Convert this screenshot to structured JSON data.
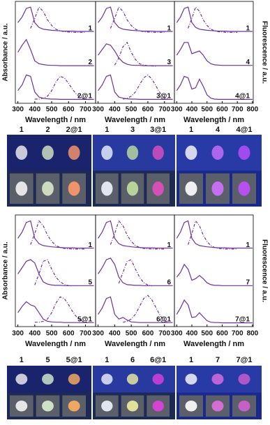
{
  "y_label_left": "Absorbance / a.u.",
  "y_label_right": "Fluorescence / a.u.",
  "photo_labels": [
    [
      "1",
      "2",
      "2@1"
    ],
    [
      "1",
      "3",
      "3@1"
    ],
    [
      "1",
      "4",
      "4@1"
    ],
    [
      "1",
      "5",
      "5@1"
    ],
    [
      "1",
      "6",
      "6@1"
    ],
    [
      "1",
      "7",
      "7@1"
    ]
  ],
  "chart_data": [
    {
      "type": "line",
      "x_label": "Wavelength / nm",
      "color": "#7030a0",
      "xlim": [
        285,
        760
      ],
      "ylim": [
        0,
        1
      ],
      "xticks": [
        300,
        400,
        500,
        600,
        700
      ],
      "x": [
        300,
        325,
        350,
        375,
        400,
        425,
        450,
        475,
        500,
        525,
        550,
        575,
        600,
        625,
        650,
        675,
        700,
        725,
        750
      ],
      "rows": [
        {
          "label": "1",
          "absorbance": [
            0.35,
            0.55,
            0.85,
            0.9,
            0.35,
            0.18,
            0.12,
            0.1,
            0.08,
            0.07,
            0.06,
            0.05,
            0.05,
            0.05,
            0.04,
            0.04,
            0.04,
            0.04,
            0.04
          ],
          "fluorescence": [
            null,
            null,
            null,
            0.15,
            0.5,
            0.9,
            0.75,
            0.45,
            0.25,
            0.12,
            0.06,
            0.03,
            0.02,
            0.01,
            0.01,
            0.01,
            0.01,
            null,
            null
          ]
        },
        {
          "label": "2",
          "absorbance": [
            0.5,
            0.75,
            0.95,
            0.6,
            0.2,
            0.1,
            0.07,
            0.05,
            0.04,
            0.04,
            0.03,
            0.03,
            0.03,
            0.03,
            0.03,
            0.03,
            0.03,
            0.03,
            0.03
          ]
        },
        {
          "label": "2@1",
          "absorbance": [
            0.35,
            0.55,
            0.9,
            0.85,
            0.3,
            0.12,
            0.08,
            0.06,
            0.05,
            0.05,
            0.04,
            0.04,
            0.04,
            0.04,
            0.04,
            0.04,
            0.04,
            0.04,
            0.04
          ],
          "fluorescence": [
            null,
            null,
            null,
            null,
            0.05,
            0.05,
            0.08,
            0.15,
            0.35,
            0.65,
            0.85,
            0.8,
            0.6,
            0.38,
            0.2,
            0.1,
            0.05,
            0.03,
            null
          ]
        }
      ]
    },
    {
      "type": "line",
      "x_label": "Wavelength / nm",
      "color": "#7030a0",
      "xlim": [
        285,
        760
      ],
      "ylim": [
        0,
        1
      ],
      "xticks": [
        300,
        400,
        500,
        600,
        700
      ],
      "x": [
        300,
        325,
        350,
        375,
        400,
        425,
        450,
        475,
        500,
        525,
        550,
        575,
        600,
        625,
        650,
        675,
        700,
        725,
        750
      ],
      "rows": [
        {
          "label": "1",
          "absorbance": [
            0.35,
            0.55,
            0.85,
            0.9,
            0.35,
            0.18,
            0.12,
            0.1,
            0.08,
            0.07,
            0.06,
            0.05,
            0.05,
            0.05,
            0.04,
            0.04,
            0.04,
            0.04,
            0.04
          ],
          "fluorescence": [
            null,
            null,
            null,
            0.15,
            0.5,
            0.9,
            0.75,
            0.45,
            0.25,
            0.12,
            0.06,
            0.03,
            0.02,
            0.01,
            0.01,
            0.01,
            0.01,
            null,
            null
          ]
        },
        {
          "label": "3",
          "absorbance": [
            0.4,
            0.6,
            0.8,
            0.75,
            0.55,
            0.3,
            0.15,
            0.08,
            0.05,
            0.04,
            0.04,
            0.03,
            0.03,
            0.03,
            0.03,
            0.03,
            0.03,
            0.03,
            0.03
          ],
          "fluorescence": [
            null,
            null,
            null,
            null,
            0.05,
            0.3,
            0.7,
            0.85,
            0.5,
            0.25,
            0.1,
            0.05,
            0.03,
            0.02,
            0.01,
            null,
            null,
            null,
            null
          ]
        },
        {
          "label": "3@1",
          "absorbance": [
            0.35,
            0.55,
            0.85,
            0.9,
            0.3,
            0.12,
            0.08,
            0.06,
            0.05,
            0.05,
            0.04,
            0.04,
            0.04,
            0.04,
            0.04,
            0.04,
            0.04,
            0.04,
            0.04
          ],
          "fluorescence": [
            null,
            null,
            null,
            null,
            null,
            null,
            0.05,
            0.08,
            0.15,
            0.3,
            0.55,
            0.8,
            0.9,
            0.75,
            0.5,
            0.25,
            0.1,
            0.04,
            null
          ]
        }
      ]
    },
    {
      "type": "line",
      "x_label": "Wavelength / nm",
      "color": "#7030a0",
      "xlim": [
        285,
        805
      ],
      "ylim": [
        0,
        1
      ],
      "xticks": [
        300,
        400,
        500,
        600,
        700,
        800
      ],
      "x": [
        300,
        325,
        350,
        375,
        400,
        425,
        450,
        475,
        500,
        525,
        550,
        575,
        600,
        625,
        650,
        675,
        700,
        725,
        750,
        775,
        800
      ],
      "rows": [
        {
          "label": "1",
          "absorbance": [
            0.35,
            0.55,
            0.85,
            0.9,
            0.35,
            0.18,
            0.12,
            0.1,
            0.08,
            0.07,
            0.06,
            0.05,
            0.05,
            0.05,
            0.04,
            0.04,
            0.04,
            0.04,
            0.04,
            0.04,
            0.04
          ],
          "fluorescence": [
            null,
            null,
            null,
            0.15,
            0.5,
            0.9,
            0.75,
            0.45,
            0.25,
            0.12,
            0.06,
            0.03,
            0.02,
            0.01,
            0.01,
            0.01,
            0.01,
            null,
            null,
            null,
            null
          ]
        },
        {
          "label": "4",
          "absorbance": [
            0.4,
            0.6,
            0.85,
            0.85,
            0.45,
            0.5,
            0.55,
            0.4,
            0.2,
            0.1,
            0.06,
            0.05,
            0.04,
            0.04,
            0.04,
            0.04,
            0.04,
            0.04,
            0.04,
            0.04,
            0.04
          ]
        },
        {
          "label": "4@1",
          "absorbance": [
            0.35,
            0.55,
            0.85,
            0.8,
            0.4,
            0.45,
            0.75,
            0.5,
            0.2,
            0.08,
            0.05,
            0.04,
            0.04,
            0.04,
            0.04,
            0.04,
            0.04,
            0.04,
            0.04,
            0.04,
            0.04
          ]
        }
      ]
    },
    {
      "type": "line",
      "x_label": "Wavelength / nm",
      "color": "#7030a0",
      "xlim": [
        285,
        760
      ],
      "ylim": [
        0,
        1
      ],
      "xticks": [
        300,
        400,
        500,
        600,
        700
      ],
      "x": [
        300,
        325,
        350,
        375,
        400,
        425,
        450,
        475,
        500,
        525,
        550,
        575,
        600,
        625,
        650,
        675,
        700,
        725,
        750
      ],
      "rows": [
        {
          "label": "1",
          "absorbance": [
            0.35,
            0.55,
            0.85,
            0.9,
            0.35,
            0.18,
            0.12,
            0.1,
            0.08,
            0.07,
            0.06,
            0.05,
            0.05,
            0.05,
            0.04,
            0.04,
            0.04,
            0.04,
            0.04
          ],
          "fluorescence": [
            null,
            null,
            null,
            0.15,
            0.5,
            0.9,
            0.75,
            0.45,
            0.25,
            0.12,
            0.06,
            0.03,
            0.02,
            0.01,
            0.01,
            0.01,
            0.01,
            null,
            null
          ]
        },
        {
          "label": "5",
          "absorbance": [
            0.4,
            0.6,
            0.8,
            0.85,
            0.75,
            0.4,
            0.15,
            0.08,
            0.05,
            0.04,
            0.04,
            0.03,
            0.03,
            0.03,
            0.03,
            0.03,
            0.03,
            0.03,
            0.03
          ],
          "fluorescence": [
            null,
            null,
            null,
            null,
            0.05,
            0.4,
            0.8,
            0.85,
            0.55,
            0.3,
            0.15,
            0.07,
            0.03,
            0.02,
            null,
            null,
            null,
            null,
            null
          ]
        },
        {
          "label": "5@1",
          "absorbance": [
            0.35,
            0.55,
            0.7,
            0.6,
            0.55,
            0.35,
            0.15,
            0.08,
            0.06,
            0.05,
            0.05,
            0.04,
            0.04,
            0.04,
            0.04,
            0.04,
            0.04,
            0.04,
            0.04
          ],
          "fluorescence": [
            null,
            null,
            null,
            null,
            0.05,
            0.05,
            0.08,
            0.15,
            0.35,
            0.65,
            0.85,
            0.8,
            0.6,
            0.38,
            0.2,
            0.1,
            0.05,
            0.03,
            null
          ]
        }
      ]
    },
    {
      "type": "line",
      "x_label": "Wavelength / nm",
      "color": "#7030a0",
      "xlim": [
        285,
        760
      ],
      "ylim": [
        0,
        1
      ],
      "xticks": [
        300,
        400,
        500,
        600,
        700
      ],
      "x": [
        300,
        325,
        350,
        375,
        400,
        425,
        450,
        475,
        500,
        525,
        550,
        575,
        600,
        625,
        650,
        675,
        700,
        725,
        750
      ],
      "rows": [
        {
          "label": "1",
          "absorbance": [
            0.35,
            0.55,
            0.85,
            0.9,
            0.35,
            0.18,
            0.12,
            0.1,
            0.08,
            0.07,
            0.06,
            0.05,
            0.05,
            0.05,
            0.04,
            0.04,
            0.04,
            0.04,
            0.04
          ],
          "fluorescence": [
            null,
            null,
            null,
            0.15,
            0.5,
            0.9,
            0.75,
            0.45,
            0.25,
            0.12,
            0.06,
            0.03,
            0.02,
            0.01,
            0.01,
            0.01,
            0.01,
            null,
            null
          ]
        },
        {
          "label": "6",
          "absorbance": [
            0.4,
            0.6,
            0.85,
            0.9,
            0.7,
            0.3,
            0.12,
            0.06,
            0.05,
            0.04,
            0.04,
            0.03,
            0.03,
            0.03,
            0.03,
            0.03,
            0.03,
            0.03,
            0.03
          ],
          "fluorescence": [
            null,
            null,
            null,
            null,
            null,
            0.1,
            0.45,
            0.8,
            0.85,
            0.55,
            0.3,
            0.12,
            0.05,
            0.02,
            null,
            null,
            null,
            null,
            null
          ]
        },
        {
          "label": "6@1",
          "absorbance": [
            0.3,
            0.5,
            0.8,
            0.85,
            0.3,
            0.15,
            0.2,
            0.12,
            0.06,
            0.05,
            0.04,
            0.04,
            0.04,
            0.04,
            0.04,
            0.04,
            0.04,
            0.04,
            0.04
          ],
          "fluorescence": [
            null,
            null,
            null,
            null,
            null,
            null,
            0.05,
            0.08,
            0.15,
            0.3,
            0.55,
            0.8,
            0.9,
            0.75,
            0.5,
            0.25,
            0.1,
            0.04,
            null
          ]
        }
      ]
    },
    {
      "type": "line",
      "x_label": "Wavelength / nm",
      "color": "#7030a0",
      "xlim": [
        285,
        805
      ],
      "ylim": [
        0,
        1
      ],
      "xticks": [
        300,
        400,
        500,
        600,
        700,
        800
      ],
      "x": [
        300,
        325,
        350,
        375,
        400,
        425,
        450,
        475,
        500,
        525,
        550,
        575,
        600,
        625,
        650,
        675,
        700,
        725,
        750,
        775,
        800
      ],
      "rows": [
        {
          "label": "1",
          "absorbance": [
            0.35,
            0.55,
            0.85,
            0.9,
            0.35,
            0.18,
            0.12,
            0.1,
            0.08,
            0.07,
            0.06,
            0.05,
            0.05,
            0.05,
            0.04,
            0.04,
            0.04,
            0.04,
            0.04,
            0.04,
            0.04
          ],
          "fluorescence": [
            null,
            null,
            null,
            0.15,
            0.5,
            0.9,
            0.75,
            0.45,
            0.25,
            0.12,
            0.06,
            0.03,
            0.02,
            0.01,
            0.01,
            0.01,
            0.01,
            null,
            null,
            null,
            null
          ]
        },
        {
          "label": "7",
          "absorbance": [
            0.3,
            0.45,
            0.7,
            0.55,
            0.2,
            0.25,
            0.35,
            0.25,
            0.12,
            0.06,
            0.04,
            0.04,
            0.03,
            0.03,
            0.03,
            0.03,
            0.03,
            0.03,
            0.03,
            0.03,
            0.03
          ]
        },
        {
          "label": "7@1",
          "absorbance": [
            0.3,
            0.5,
            0.75,
            0.6,
            0.2,
            0.22,
            0.35,
            0.22,
            0.1,
            0.05,
            0.04,
            0.04,
            0.03,
            0.03,
            0.03,
            0.03,
            0.03,
            0.03,
            0.03,
            0.03,
            0.03
          ]
        }
      ]
    }
  ]
}
